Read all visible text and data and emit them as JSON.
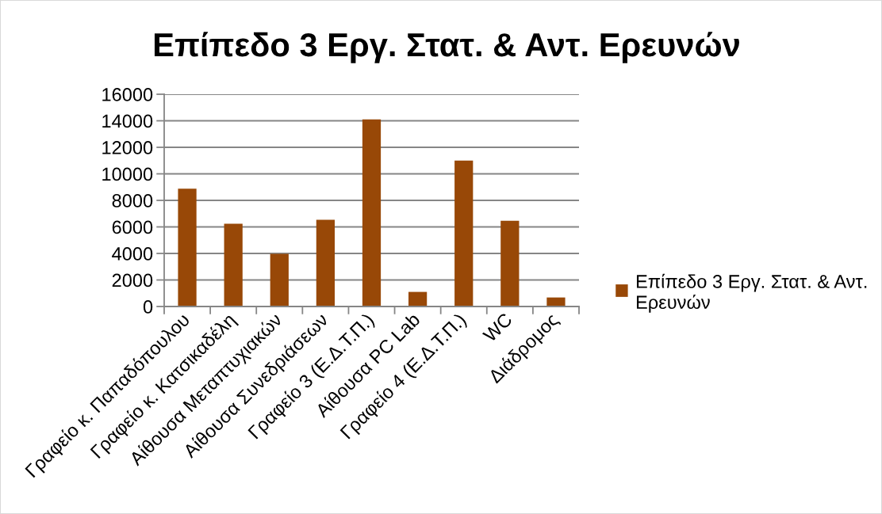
{
  "chart_data": {
    "type": "bar",
    "title": "Επίπεδο 3 Εργ. Στατ. & Αντ. Ερευνών",
    "categories": [
      "Γραφείο κ. Παπαδόπουλου",
      "Γραφείο κ. Κατσικαδέλη",
      "Αίθουσα Μεταπτυχιακών",
      "Αίθουσα Συνεδριάσεων",
      "Γραφείο 3 (Ε.Δ.Τ.Π.)",
      "Αίθουσα PC Lab",
      "Γραφείο 4 (Ε.Δ.Τ.Π.)",
      "WC",
      "Διάδρομος"
    ],
    "series": [
      {
        "name": "Επίπεδο 3 Εργ. Στατ. & Αντ. Ερευνών",
        "color": "#984807",
        "values": [
          8880,
          6240,
          3970,
          6540,
          14100,
          1100,
          11000,
          6460,
          680
        ]
      }
    ],
    "ylim": [
      0,
      16000
    ],
    "yticks": [
      0,
      2000,
      4000,
      6000,
      8000,
      10000,
      12000,
      14000,
      16000
    ],
    "grid": "y",
    "legend": "right"
  }
}
